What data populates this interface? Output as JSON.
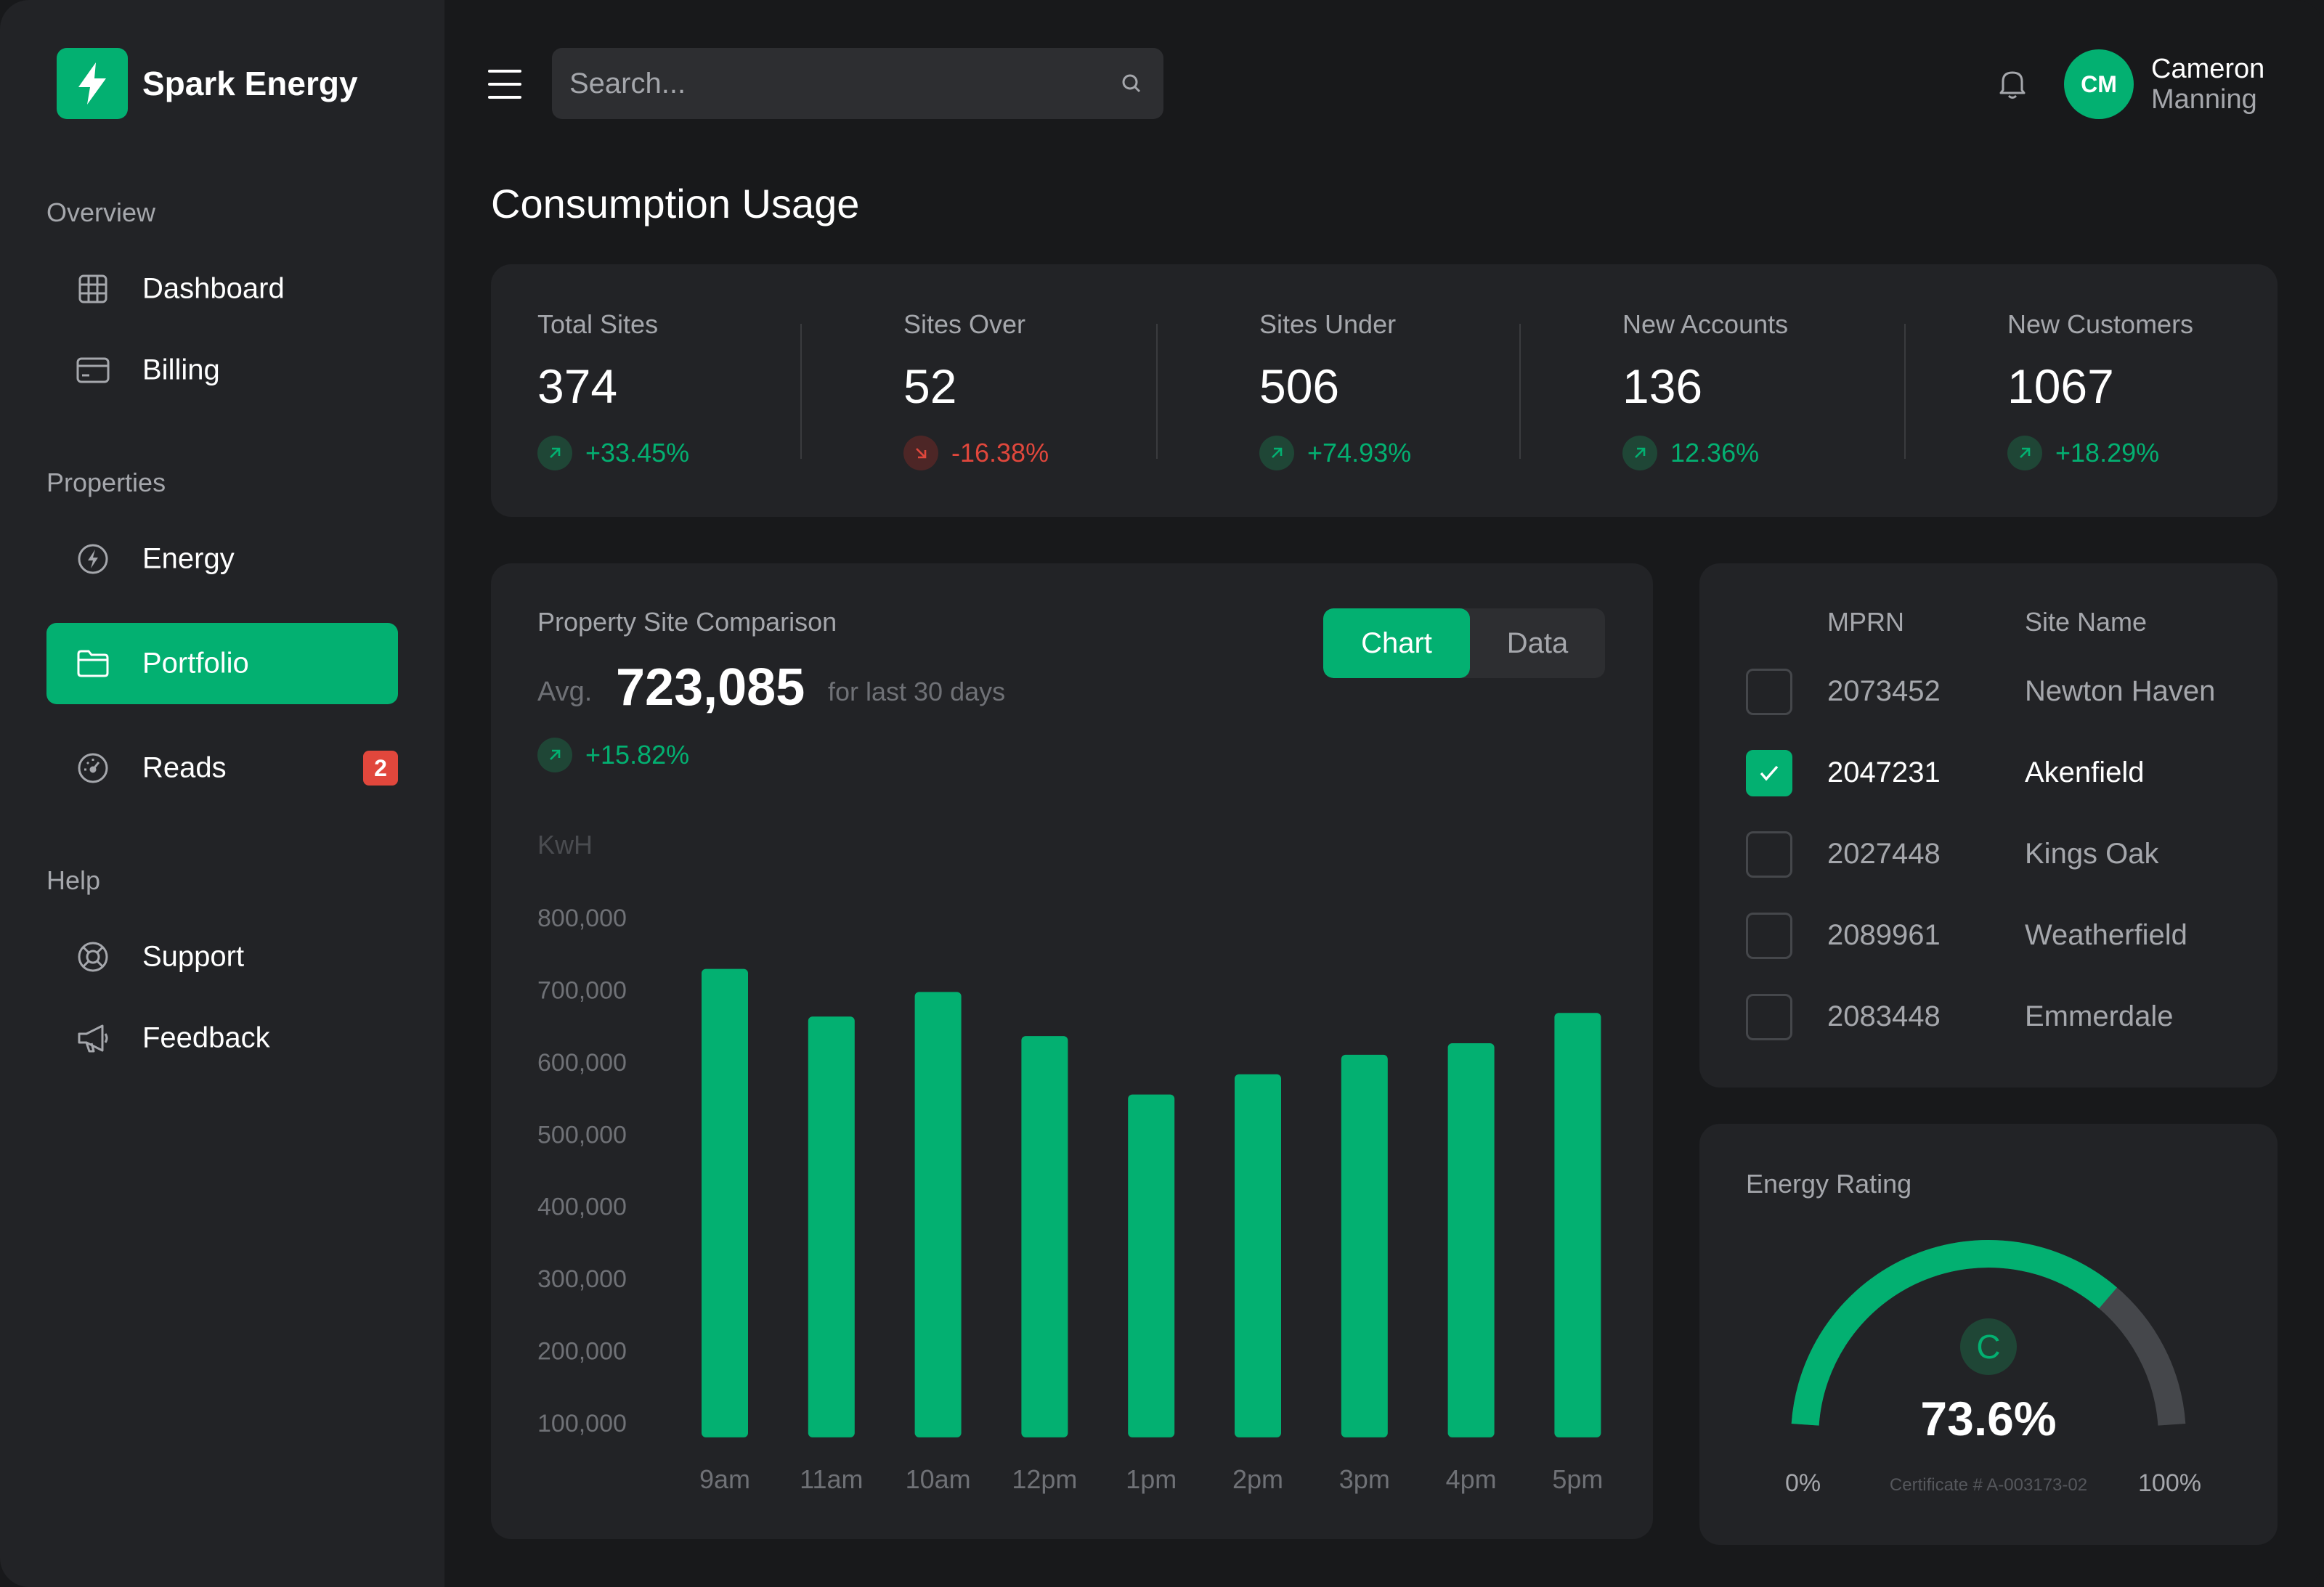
{
  "brand": {
    "name": "Spark Energy"
  },
  "sidebar": {
    "sections": [
      {
        "title": "Overview"
      },
      {
        "title": "Properties"
      },
      {
        "title": "Help"
      }
    ],
    "items": [
      {
        "label": "Dashboard",
        "icon": "grid-icon"
      },
      {
        "label": "Billing",
        "icon": "credit-card-icon"
      },
      {
        "label": "Energy",
        "icon": "bolt-circle-icon"
      },
      {
        "label": "Portfolio",
        "icon": "folder-icon",
        "active": true
      },
      {
        "label": "Reads",
        "icon": "gauge-icon",
        "badge": "2"
      },
      {
        "label": "Support",
        "icon": "lifebuoy-icon"
      },
      {
        "label": "Feedback",
        "icon": "megaphone-icon"
      }
    ]
  },
  "header": {
    "search_placeholder": "Search...",
    "user": {
      "initials": "CM",
      "first_name": "Cameron",
      "last_name": "Manning"
    }
  },
  "page": {
    "title": "Consumption Usage"
  },
  "stats": [
    {
      "label": "Total Sites",
      "value": "374",
      "change": "+33.45%",
      "trend": "up"
    },
    {
      "label": "Sites Over",
      "value": "52",
      "change": "-16.38%",
      "trend": "down"
    },
    {
      "label": "Sites Under",
      "value": "506",
      "change": "+74.93%",
      "trend": "up"
    },
    {
      "label": "New Accounts",
      "value": "136",
      "change": "12.36%",
      "trend": "up"
    },
    {
      "label": "New Customers",
      "value": "1067",
      "change": "+18.29%",
      "trend": "up"
    }
  ],
  "comparison": {
    "title": "Property Site Comparison",
    "avg_label": "Avg.",
    "avg_value": "723,085",
    "period": "for last 30 days",
    "change": "+15.82%",
    "toggle": {
      "chart": "Chart",
      "data": "Data",
      "selected": "Chart"
    }
  },
  "chart_data": {
    "type": "bar",
    "title": "Property Site Comparison",
    "ylabel": "KwH",
    "xlabel": "",
    "categories": [
      "9am",
      "11am",
      "10am",
      "12pm",
      "1pm",
      "2pm",
      "3pm",
      "4pm",
      "5pm"
    ],
    "values": [
      729000,
      663000,
      697000,
      636000,
      555000,
      583000,
      610000,
      626000,
      668000
    ],
    "y_ticks": [
      800000,
      700000,
      600000,
      500000,
      400000,
      300000,
      200000,
      100000
    ],
    "y_tick_labels": [
      "800,000",
      "700,000",
      "600,000",
      "500,000",
      "400,000",
      "300,000",
      "200,000",
      "100,000"
    ],
    "ylim": [
      80000,
      800000
    ],
    "grid": false,
    "color": "#03b071"
  },
  "mprn_table": {
    "headers": {
      "mprn": "MPRN",
      "site": "Site Name"
    },
    "rows": [
      {
        "mprn": "2073452",
        "site": "Newton Haven",
        "checked": false
      },
      {
        "mprn": "2047231",
        "site": "Akenfield",
        "checked": true
      },
      {
        "mprn": "2027448",
        "site": "Kings Oak",
        "checked": false
      },
      {
        "mprn": "2089961",
        "site": "Weatherfield",
        "checked": false
      },
      {
        "mprn": "2083448",
        "site": "Emmerdale",
        "checked": false
      }
    ]
  },
  "energy_rating": {
    "title": "Energy Rating",
    "grade": "C",
    "percent_label": "73.6%",
    "percent": 73.6,
    "min_label": "0%",
    "max_label": "100%",
    "certificate": "Certificate # A-003173-02",
    "fill_color": "#03b071",
    "track_color": "#45474b"
  },
  "colors": {
    "accent": "#03b071",
    "negative": "#e1473c",
    "background": "#18191b",
    "card": "#222326"
  }
}
